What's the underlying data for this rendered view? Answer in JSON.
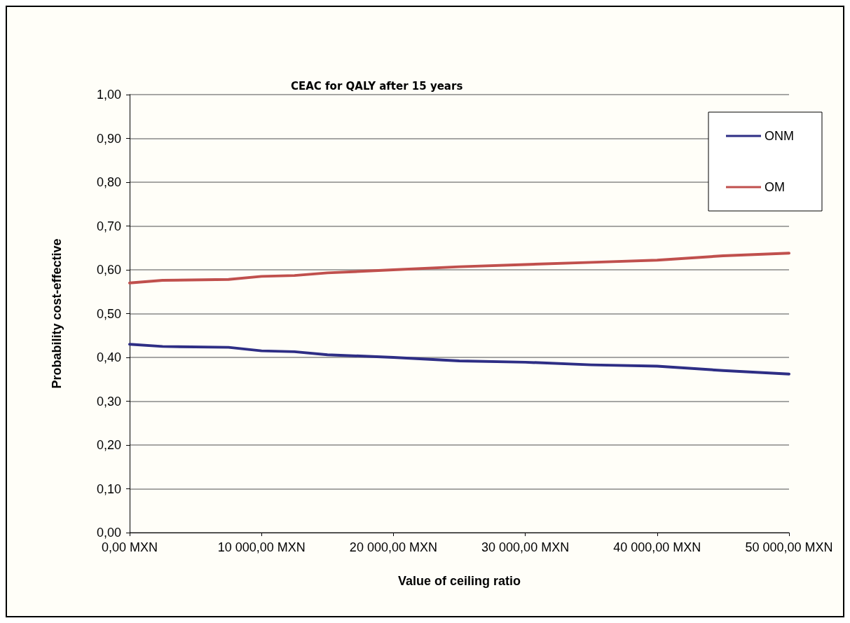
{
  "chart_data": {
    "type": "line",
    "title": "CEAC for QALY after 15 years",
    "xlabel": "Value of ceiling ratio",
    "ylabel": "Probability cost-effective",
    "xlim": [
      0,
      50000
    ],
    "xticks": [
      {
        "value": 0,
        "label": "0,00 MXN"
      },
      {
        "value": 10000,
        "label": "10 000,00 MXN"
      },
      {
        "value": 20000,
        "label": "20 000,00 MXN"
      },
      {
        "value": 30000,
        "label": "30 000,00 MXN"
      },
      {
        "value": 40000,
        "label": "40 000,00 MXN"
      },
      {
        "value": 50000,
        "label": "50 000,00 MXN"
      }
    ],
    "ylim": [
      0,
      1
    ],
    "yticks": [
      {
        "value": 0,
        "label": "0,00"
      },
      {
        "value": 0.1,
        "label": "0,10"
      },
      {
        "value": 0.2,
        "label": "0,20"
      },
      {
        "value": 0.3,
        "label": "0,30"
      },
      {
        "value": 0.4,
        "label": "0,40"
      },
      {
        "value": 0.5,
        "label": "0,50"
      },
      {
        "value": 0.6,
        "label": "0,60"
      },
      {
        "value": 0.7,
        "label": "0,70"
      },
      {
        "value": 0.8,
        "label": "0,80"
      },
      {
        "value": 0.9,
        "label": "0,90"
      },
      {
        "value": 1,
        "label": "1,00"
      }
    ],
    "x": [
      0,
      2500,
      7500,
      10000,
      12500,
      15000,
      20000,
      25000,
      30000,
      35000,
      40000,
      45000,
      50000
    ],
    "series": [
      {
        "name": "ONM",
        "color": "#2e2e85",
        "values": [
          0.43,
          0.425,
          0.423,
          0.415,
          0.413,
          0.406,
          0.4,
          0.392,
          0.389,
          0.383,
          0.38,
          0.37,
          0.362
        ]
      },
      {
        "name": "OM",
        "color": "#c0504d",
        "values": [
          0.57,
          0.576,
          0.578,
          0.585,
          0.587,
          0.593,
          0.6,
          0.607,
          0.612,
          0.617,
          0.622,
          0.632,
          0.638
        ]
      }
    ],
    "grid": "y",
    "legend": "top right",
    "marker": "none",
    "line_style": "solid"
  }
}
